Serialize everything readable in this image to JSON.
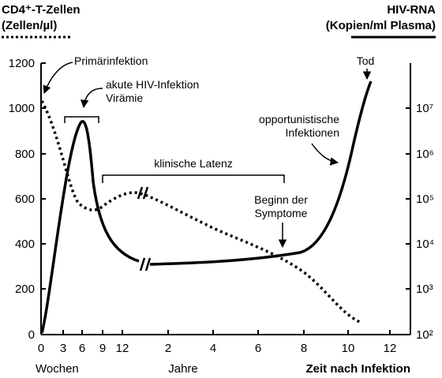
{
  "chart_data": {
    "type": "line",
    "left_axis": {
      "label_line1": "CD4⁺-T-Zellen",
      "label_line2": "(Zellen/µl)",
      "ticks": [
        0,
        200,
        400,
        600,
        800,
        1000,
        1200
      ],
      "ylim": [
        0,
        1200
      ],
      "line_style": "dotted"
    },
    "right_axis": {
      "label_line1": "HIV-RNA",
      "label_line2": "(Kopien/ml Plasma)",
      "scale": "log",
      "ticks": [
        "10²",
        "10³",
        "10⁴",
        "10⁵",
        "10⁶",
        "10⁷"
      ],
      "line_style": "solid"
    },
    "x_axis": {
      "weeks_label": "Wochen",
      "weeks_ticks": [
        "0",
        "3",
        "6",
        "9",
        "12"
      ],
      "years_label": "Jahre",
      "years_ticks": [
        "2",
        "4",
        "6",
        "8",
        "10",
        "12"
      ],
      "title": "Zeit nach Infektion",
      "axis_break": true
    },
    "series": [
      {
        "key": "cd4",
        "style": "dotted",
        "axis": "left",
        "points": [
          {
            "t": "0 Wochen",
            "y": 1050
          },
          {
            "t": "3 Wochen",
            "y": 850
          },
          {
            "t": "6 Wochen",
            "y": 560
          },
          {
            "t": "9 Wochen",
            "y": 570
          },
          {
            "t": "12 Wochen",
            "y": 615
          },
          {
            "t": "2 Jahre",
            "y": 580
          },
          {
            "t": "4 Jahre",
            "y": 470
          },
          {
            "t": "6 Jahre",
            "y": 370
          },
          {
            "t": "8 Jahre",
            "y": 230
          },
          {
            "t": "10 Jahre",
            "y": 80
          },
          {
            "t": "11 Jahre",
            "y": 55
          }
        ]
      },
      {
        "key": "hiv-rna",
        "style": "solid",
        "axis": "right",
        "points": [
          {
            "t": "0 Wochen",
            "y": "10²"
          },
          {
            "t": "6 Wochen",
            "y": "≈10⁶·⁵"
          },
          {
            "t": "12 Wochen",
            "y": "≈10³·⁶"
          },
          {
            "t": "4 Jahre",
            "y": "≈10³·⁷"
          },
          {
            "t": "8 Jahre",
            "y": "≈10³·⁹"
          },
          {
            "t": "11 Jahre",
            "y": "≈10⁷·⁸"
          }
        ]
      }
    ],
    "annotations": {
      "primary": "Primärinfektion",
      "acute_line1": "akute HIV-Infektion",
      "acute_line2": "Virämie",
      "latency": "klinische Latenz",
      "opportunistic_line1": "opportunistische",
      "opportunistic_line2": "Infektionen",
      "symptoms_line1": "Beginn der",
      "symptoms_line2": "Symptome",
      "death": "Tod"
    }
  }
}
